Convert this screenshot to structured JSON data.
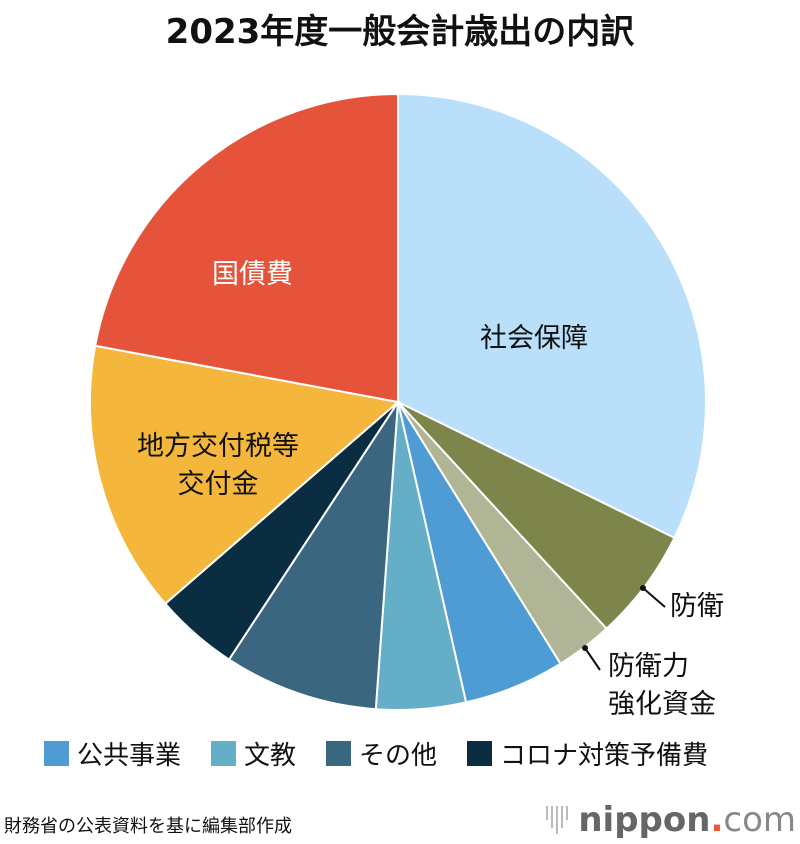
{
  "chart_data": {
    "type": "pie",
    "title": "2023年度一般会計歳出の内訳",
    "start": "top",
    "direction": "clockwise",
    "slices": [
      {
        "label": "社会保障",
        "value": 32.3,
        "color": "#b9dffa"
      },
      {
        "label": "防衛",
        "value": 5.9,
        "color": "#7d854a"
      },
      {
        "label": "防衛力強化資金",
        "value": 3.0,
        "color": "#b0b595"
      },
      {
        "label": "公共事業",
        "value": 5.3,
        "color": "#4f9bd3"
      },
      {
        "label": "文教",
        "value": 4.7,
        "color": "#64aec8"
      },
      {
        "label": "その他",
        "value": 8.1,
        "color": "#3b6680"
      },
      {
        "label": "コロナ対策予備費",
        "value": 4.4,
        "color": "#0a2d42"
      },
      {
        "label": "地方交付税等交付金",
        "value": 14.3,
        "color": "#f4b73c"
      },
      {
        "label": "国債費",
        "value": 22.1,
        "color": "#e4533a"
      }
    ],
    "slice_labels": {
      "social": "社会保障",
      "defense": "防衛",
      "defense_fund_1": "防衛力",
      "defense_fund_2": "強化資金",
      "local_1": "地方交付税等",
      "local_2": "交付金",
      "debt": "国債費"
    },
    "legend": [
      {
        "label": "公共事業",
        "color": "#4f9bd3"
      },
      {
        "label": "文教",
        "color": "#64aec8"
      },
      {
        "label": "その他",
        "color": "#3b6680"
      },
      {
        "label": "コロナ対策予備費",
        "color": "#0a2d42"
      }
    ],
    "legend_position": "bottom"
  },
  "source": "財務省の公表資料を基に編集部作成",
  "logo": {
    "name": "nippon",
    "dot": ".",
    "tld": "com"
  }
}
